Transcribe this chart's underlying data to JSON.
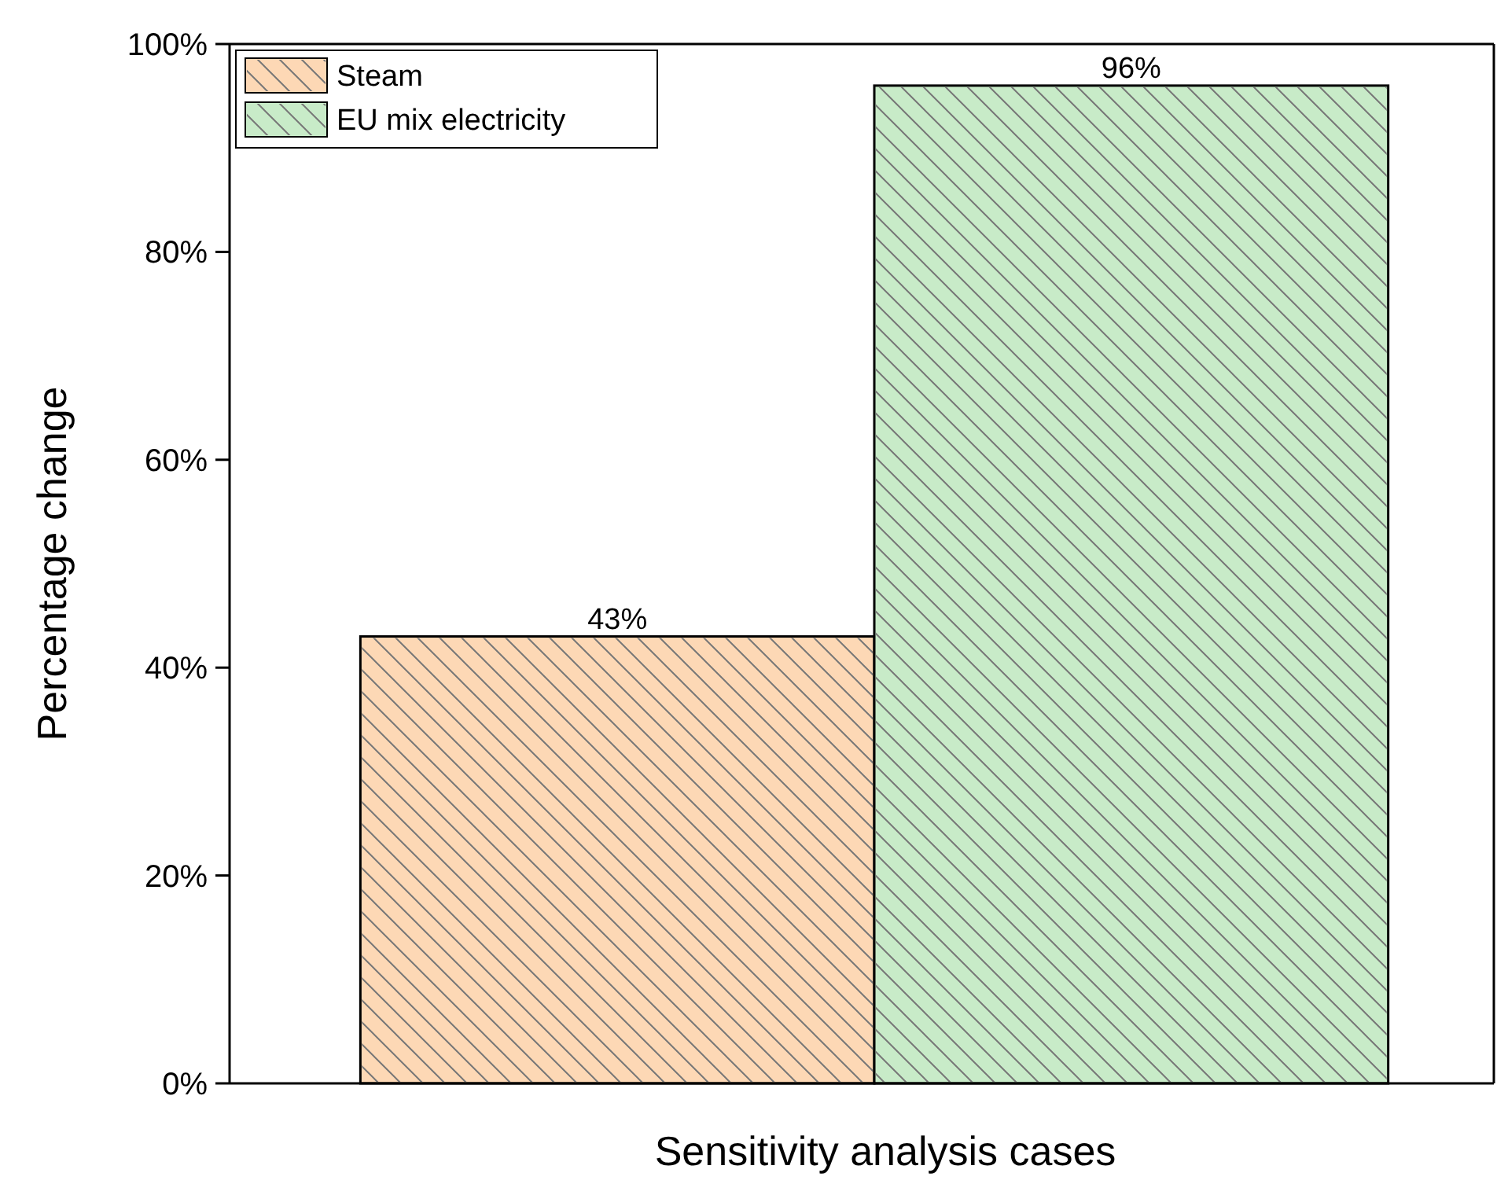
{
  "chart_data": {
    "type": "bar",
    "xlabel": "Sensitivity analysis cases",
    "ylabel": "Percentage change",
    "categories": [
      null
    ],
    "series": [
      {
        "name": "Steam",
        "color": "#fdd8b5",
        "values": [
          43
        ],
        "value_labels": [
          "43%"
        ]
      },
      {
        "name": "EU mix electricity",
        "color": "#c8ebc8",
        "values": [
          96
        ],
        "value_labels": [
          "96%"
        ]
      }
    ],
    "ylim": [
      0,
      100
    ],
    "yticks": [
      {
        "value": 0,
        "label": "0%"
      },
      {
        "value": 20,
        "label": "20%"
      },
      {
        "value": 40,
        "label": "40%"
      },
      {
        "value": 60,
        "label": "60%"
      },
      {
        "value": 80,
        "label": "80%"
      },
      {
        "value": 100,
        "label": "100%"
      }
    ],
    "grid": false,
    "legend": "top left"
  }
}
